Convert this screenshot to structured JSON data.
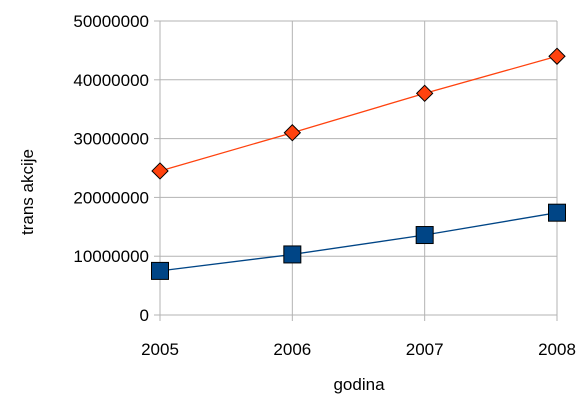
{
  "chart_data": {
    "type": "line",
    "title": "",
    "xlabel": "godina",
    "ylabel": "trans akcije",
    "categories": [
      "2005",
      "2006",
      "2007",
      "2008"
    ],
    "ylim": [
      0,
      50000000
    ],
    "yticks": [
      "0",
      "10000000",
      "20000000",
      "30000000",
      "40000000",
      "50000000"
    ],
    "grid": true,
    "legend": "none",
    "series": [
      {
        "values": [
          24500000,
          31000000,
          37700000,
          44000000
        ],
        "color": "#ff420e",
        "marker": "diamond"
      },
      {
        "values": [
          7500000,
          10300000,
          13600000,
          17400000
        ],
        "color": "#004586",
        "marker": "square"
      }
    ]
  }
}
